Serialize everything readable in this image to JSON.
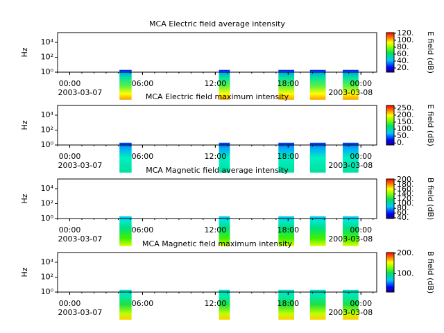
{
  "chart_data": [
    {
      "type": "spectrogram",
      "title": "MCA  Electric field average intensity",
      "ylabel": "Hz",
      "log_y": true,
      "ylim": [
        1,
        200000
      ],
      "yticks": [
        {
          "value": 1,
          "label": "10⁰"
        },
        {
          "value": 100,
          "label": "10²"
        },
        {
          "value": 10000,
          "label": "10⁴"
        }
      ],
      "xlim": [
        -1,
        25.3
      ],
      "xticks": [
        {
          "value": 0,
          "label": "00:00"
        },
        {
          "value": 6,
          "label": "06:00"
        },
        {
          "value": 12,
          "label": "12:00"
        },
        {
          "value": 18,
          "label": "18:00"
        },
        {
          "value": 24,
          "label": "00:00"
        }
      ],
      "dates": [
        "2003-03-07",
        "2003-03-08"
      ],
      "blocks": [
        [
          4.1,
          5.1
        ],
        [
          12.3,
          13.2
        ],
        [
          17.2,
          18.5
        ],
        [
          19.8,
          21.1
        ],
        [
          22.5,
          23.8
        ]
      ],
      "colorbar": {
        "label": "E field (dB)",
        "lim": [
          8,
          122
        ],
        "ticks": [
          {
            "value": 20,
            "label": "20."
          },
          {
            "value": 40,
            "label": "40."
          },
          {
            "value": 60,
            "label": "60."
          },
          {
            "value": 80,
            "label": "80."
          },
          {
            "value": 100,
            "label": "100."
          },
          {
            "value": 120,
            "label": "120."
          }
        ]
      }
    },
    {
      "type": "spectrogram",
      "title": "MCA  Electric field maximum intensity",
      "ylabel": "Hz",
      "log_y": true,
      "ylim": [
        1,
        200000
      ],
      "yticks": [
        {
          "value": 1,
          "label": "10⁰"
        },
        {
          "value": 100,
          "label": "10²"
        },
        {
          "value": 10000,
          "label": "10⁴"
        }
      ],
      "xlim": [
        -1,
        25.3
      ],
      "xticks": [
        {
          "value": 0,
          "label": "00:00"
        },
        {
          "value": 6,
          "label": "06:00"
        },
        {
          "value": 12,
          "label": "12:00"
        },
        {
          "value": 18,
          "label": "18:00"
        },
        {
          "value": 24,
          "label": "00:00"
        }
      ],
      "dates": [
        "2003-03-07",
        "2003-03-08"
      ],
      "blocks": [
        [
          4.1,
          5.1
        ],
        [
          12.3,
          13.2
        ],
        [
          17.2,
          18.5
        ],
        [
          19.8,
          21.1
        ],
        [
          22.5,
          23.8
        ]
      ],
      "colorbar": {
        "label": "E field (dB)",
        "lim": [
          -14,
          269
        ],
        "ticks": [
          {
            "value": 0,
            "label": "0."
          },
          {
            "value": 50,
            "label": "50."
          },
          {
            "value": 100,
            "label": "100."
          },
          {
            "value": 150,
            "label": "150."
          },
          {
            "value": 200,
            "label": "200."
          },
          {
            "value": 250,
            "label": "250."
          }
        ]
      }
    },
    {
      "type": "spectrogram",
      "title": "MCA  Magnetic field average intensity",
      "ylabel": "Hz",
      "log_y": true,
      "ylim": [
        1,
        200000
      ],
      "yticks": [
        {
          "value": 1,
          "label": "10⁰"
        },
        {
          "value": 100,
          "label": "10²"
        },
        {
          "value": 10000,
          "label": "10⁴"
        }
      ],
      "xlim": [
        -1,
        25.3
      ],
      "xticks": [
        {
          "value": 0,
          "label": "00:00"
        },
        {
          "value": 6,
          "label": "06:00"
        },
        {
          "value": 12,
          "label": "12:00"
        },
        {
          "value": 18,
          "label": "18:00"
        },
        {
          "value": 24,
          "label": "00:00"
        }
      ],
      "dates": [
        "2003-03-07",
        "2003-03-08"
      ],
      "blocks": [
        [
          4.1,
          5.1
        ],
        [
          12.3,
          13.2
        ],
        [
          17.2,
          18.5
        ],
        [
          19.8,
          21.1
        ],
        [
          22.5,
          23.8
        ]
      ],
      "colorbar": {
        "label": "B field (dB)",
        "lim": [
          37,
          203
        ],
        "ticks": [
          {
            "value": 40,
            "label": "40."
          },
          {
            "value": 60,
            "label": "60."
          },
          {
            "value": 80,
            "label": "80."
          },
          {
            "value": 100,
            "label": "100."
          },
          {
            "value": 120,
            "label": "120."
          },
          {
            "value": 140,
            "label": "140."
          },
          {
            "value": 160,
            "label": "160."
          },
          {
            "value": 180,
            "label": "180."
          },
          {
            "value": 200,
            "label": "200."
          }
        ]
      }
    },
    {
      "type": "spectrogram",
      "title": "MCA  Magnetic field maximum intensity",
      "ylabel": "Hz",
      "log_y": true,
      "ylim": [
        1,
        200000
      ],
      "yticks": [
        {
          "value": 1,
          "label": "10⁰"
        },
        {
          "value": 100,
          "label": "10²"
        },
        {
          "value": 10000,
          "label": "10⁴"
        }
      ],
      "xlim": [
        -1,
        25.3
      ],
      "xticks": [
        {
          "value": 0,
          "label": "00:00"
        },
        {
          "value": 6,
          "label": "06:00"
        },
        {
          "value": 12,
          "label": "12:00"
        },
        {
          "value": 18,
          "label": "18:00"
        },
        {
          "value": 24,
          "label": "00:00"
        }
      ],
      "dates": [
        "2003-03-07",
        "2003-03-08"
      ],
      "blocks": [
        [
          4.1,
          5.1
        ],
        [
          12.3,
          13.2
        ],
        [
          17.2,
          18.5
        ],
        [
          19.8,
          21.1
        ],
        [
          22.5,
          23.8
        ]
      ],
      "colorbar": {
        "label": "B field (dB)",
        "lim": [
          10,
          203
        ],
        "ticks": [
          {
            "value": 100,
            "label": "100."
          },
          {
            "value": 200,
            "label": "200."
          }
        ]
      }
    }
  ]
}
